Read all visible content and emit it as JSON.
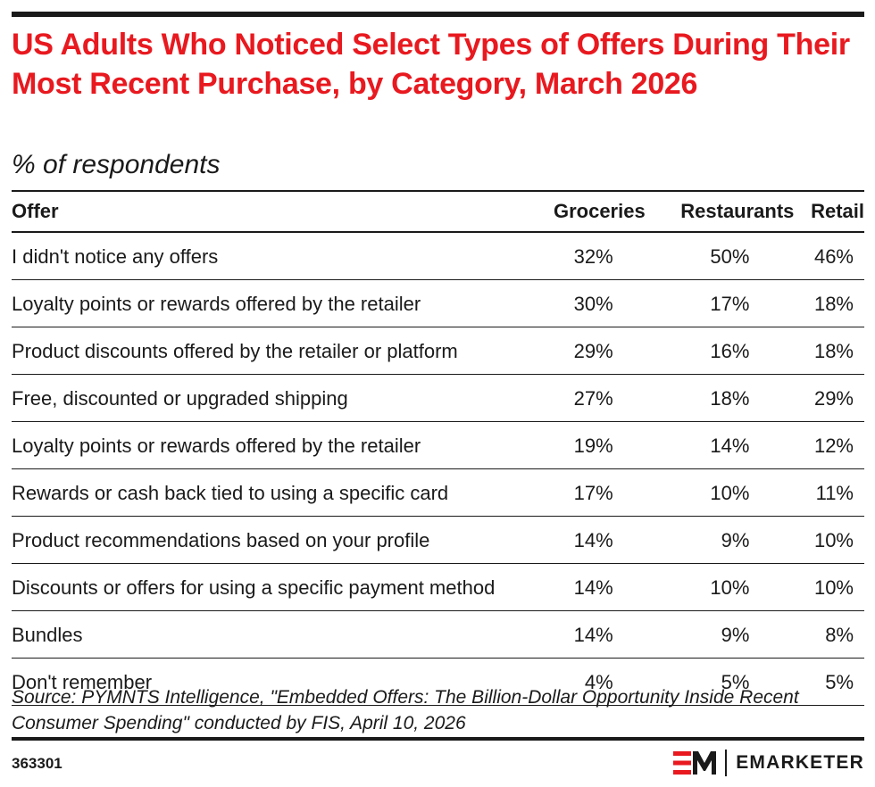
{
  "header": {
    "title": "US Adults Who Noticed Select Types of Offers During Their Most Recent Purchase, by Category, March 2026",
    "subtitle": "% of respondents"
  },
  "chart_data": {
    "type": "table",
    "title": "US Adults Who Noticed Select Types of Offers During Their Most Recent Purchase, by Category, March 2026",
    "subtitle": "% of respondents",
    "columns": [
      "Offer",
      "Groceries",
      "Restaurants",
      "Retail"
    ],
    "rows": [
      {
        "offer": "I didn't notice any offers",
        "groceries": "32%",
        "restaurants": "50%",
        "retail": "46%"
      },
      {
        "offer": "Loyalty points or rewards offered by the retailer",
        "groceries": "30%",
        "restaurants": "17%",
        "retail": "18%"
      },
      {
        "offer": "Product discounts offered by the retailer or platform",
        "groceries": "29%",
        "restaurants": "16%",
        "retail": "18%"
      },
      {
        "offer": "Free, discounted or upgraded shipping",
        "groceries": "27%",
        "restaurants": "18%",
        "retail": "29%"
      },
      {
        "offer": "Loyalty points or rewards offered by the retailer",
        "groceries": "19%",
        "restaurants": "14%",
        "retail": "12%"
      },
      {
        "offer": "Rewards or cash back tied to using a specific card",
        "groceries": "17%",
        "restaurants": "10%",
        "retail": "11%"
      },
      {
        "offer": "Product recommendations based on your profile",
        "groceries": "14%",
        "restaurants": "9%",
        "retail": "10%"
      },
      {
        "offer": "Discounts or offers for using a specific payment method",
        "groceries": "14%",
        "restaurants": "10%",
        "retail": "10%"
      },
      {
        "offer": "Bundles",
        "groceries": "14%",
        "restaurants": "9%",
        "retail": "8%"
      },
      {
        "offer": "Don't remember",
        "groceries": "4%",
        "restaurants": "5%",
        "retail": "5%"
      }
    ]
  },
  "footer": {
    "source": "Source: PYMNTS Intelligence, \"Embedded Offers: The Billion-Dollar Opportunity Inside Recent Consumer Spending\" conducted by FIS, April 10, 2026",
    "chart_id": "363301",
    "brand_name": "EMARKETER",
    "brand_logo_text": "EM"
  },
  "colors": {
    "title": "#e8191f",
    "text": "#1a1a1a",
    "rule": "#1a1a1a",
    "logo_red": "#e8191f"
  }
}
